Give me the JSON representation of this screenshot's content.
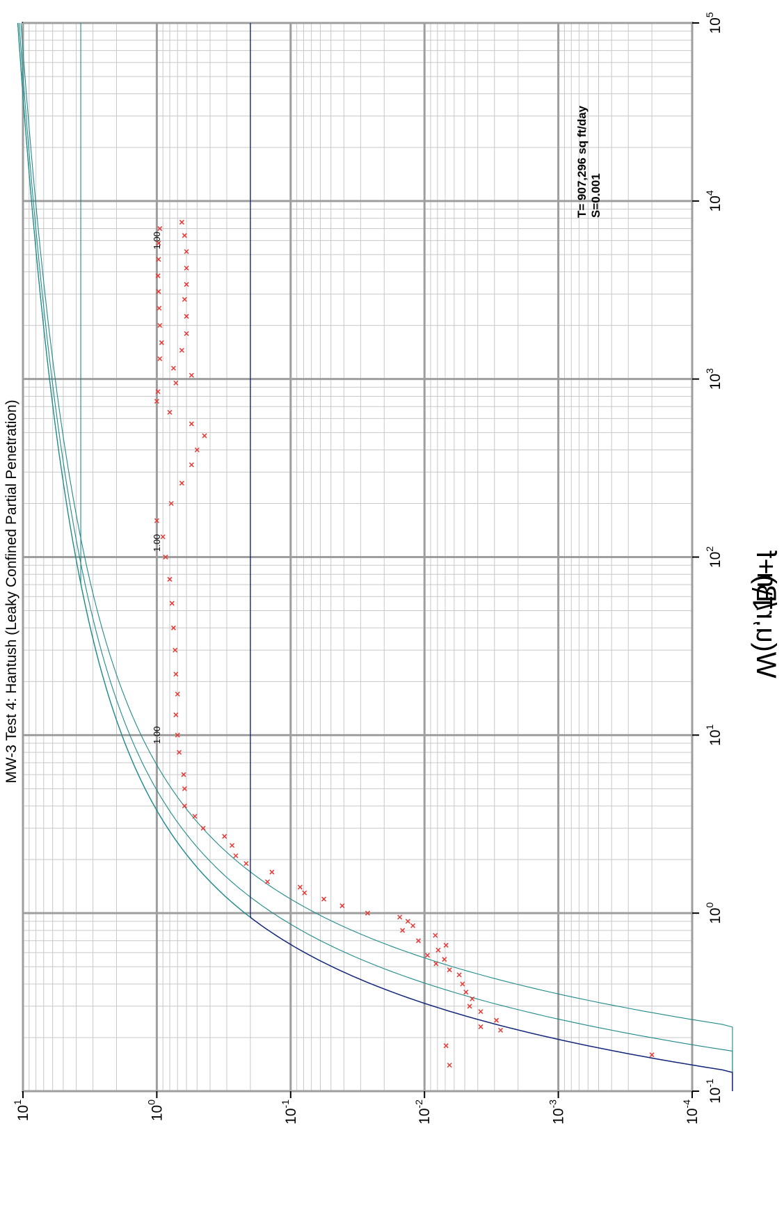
{
  "chart_data": {
    "type": "scatter",
    "title": "MW-3 Test 4: Hantush (Leaky Confined Partial Penetration)",
    "xlabel": "1/u",
    "ylabel": "W(u,r/B)+f",
    "x_scale": "log",
    "y_scale": "log",
    "xlim": [
      0.1,
      100000
    ],
    "ylim": [
      0.0001,
      10
    ],
    "x_ticks": [
      "10-1",
      "100",
      "101",
      "102",
      "103",
      "104",
      "105"
    ],
    "y_ticks": [
      "10-4",
      "10-3",
      "10-2",
      "10-1",
      "100",
      "101"
    ],
    "grid": true,
    "orientation": "rotated 90 degrees counter-clockwise",
    "annotations": [
      "T= 907,296 sq ft/day",
      "S=0.001"
    ],
    "curve_label": "1.00",
    "curve_color": "#1f8a8a",
    "match_curve_color": "#1a237e",
    "data_color": "#e53935",
    "type_curves": [
      {
        "values": [
          1.0,
          0.5,
          0.2,
          0.07
        ]
      }
    ],
    "series": [
      {
        "name": "observed",
        "points": [
          [
            0.14,
            0.0065
          ],
          [
            0.16,
            0.0002
          ],
          [
            0.18,
            0.0069
          ],
          [
            0.22,
            0.0027
          ],
          [
            0.23,
            0.0038
          ],
          [
            0.25,
            0.0029
          ],
          [
            0.28,
            0.0038
          ],
          [
            0.3,
            0.0046
          ],
          [
            0.33,
            0.0044
          ],
          [
            0.36,
            0.0049
          ],
          [
            0.4,
            0.0052
          ],
          [
            0.45,
            0.0055
          ],
          [
            0.48,
            0.0065
          ],
          [
            0.52,
            0.0082
          ],
          [
            0.55,
            0.0071
          ],
          [
            0.58,
            0.0095
          ],
          [
            0.62,
            0.0079
          ],
          [
            0.66,
            0.0069
          ],
          [
            0.7,
            0.0111
          ],
          [
            0.75,
            0.0083
          ],
          [
            0.8,
            0.0146
          ],
          [
            0.85,
            0.0122
          ],
          [
            0.9,
            0.0133
          ],
          [
            0.95,
            0.0153
          ],
          [
            1.0,
            0.0266
          ],
          [
            1.1,
            0.0412
          ],
          [
            1.2,
            0.0565
          ],
          [
            1.3,
            0.0788
          ],
          [
            1.4,
            0.085
          ],
          [
            1.5,
            0.149
          ],
          [
            1.7,
            0.138
          ],
          [
            1.9,
            0.215
          ],
          [
            2.1,
            0.257
          ],
          [
            2.4,
            0.274
          ],
          [
            2.7,
            0.312
          ],
          [
            3.0,
            0.45
          ],
          [
            3.5,
            0.52
          ],
          [
            4.0,
            0.62
          ],
          [
            5.0,
            0.62
          ],
          [
            6.0,
            0.63
          ],
          [
            8.0,
            0.68
          ],
          [
            10.0,
            0.7
          ],
          [
            13.0,
            0.72
          ],
          [
            17.0,
            0.7
          ],
          [
            22.0,
            0.72
          ],
          [
            30.0,
            0.73
          ],
          [
            40.0,
            0.75
          ],
          [
            55.0,
            0.77
          ],
          [
            75.0,
            0.8
          ],
          [
            100.0,
            0.86
          ],
          [
            130.0,
            0.9
          ],
          [
            160.0,
            1.0
          ],
          [
            200.0,
            0.78
          ],
          [
            260.0,
            0.65
          ],
          [
            330.0,
            0.55
          ],
          [
            400.0,
            0.5
          ],
          [
            480.0,
            0.44
          ],
          [
            560.0,
            0.55
          ],
          [
            650.0,
            0.8
          ],
          [
            750.0,
            1.0
          ],
          [
            850.0,
            0.98
          ],
          [
            950.0,
            0.72
          ],
          [
            1050.0,
            0.55
          ],
          [
            1150.0,
            0.75
          ],
          [
            1300.0,
            0.95
          ],
          [
            1450.0,
            0.65
          ],
          [
            1600.0,
            0.92
          ],
          [
            1800.0,
            0.6
          ],
          [
            2000.0,
            0.95
          ],
          [
            2250.0,
            0.6
          ],
          [
            2500.0,
            0.96
          ],
          [
            2800.0,
            0.62
          ],
          [
            3100.0,
            0.97
          ],
          [
            3400.0,
            0.6
          ],
          [
            3800.0,
            0.98
          ],
          [
            4200.0,
            0.6
          ],
          [
            4700.0,
            0.97
          ],
          [
            5200.0,
            0.6
          ],
          [
            5800.0,
            0.97
          ],
          [
            6400.0,
            0.62
          ],
          [
            7000.0,
            0.95
          ],
          [
            7600.0,
            0.65
          ]
        ]
      }
    ]
  }
}
